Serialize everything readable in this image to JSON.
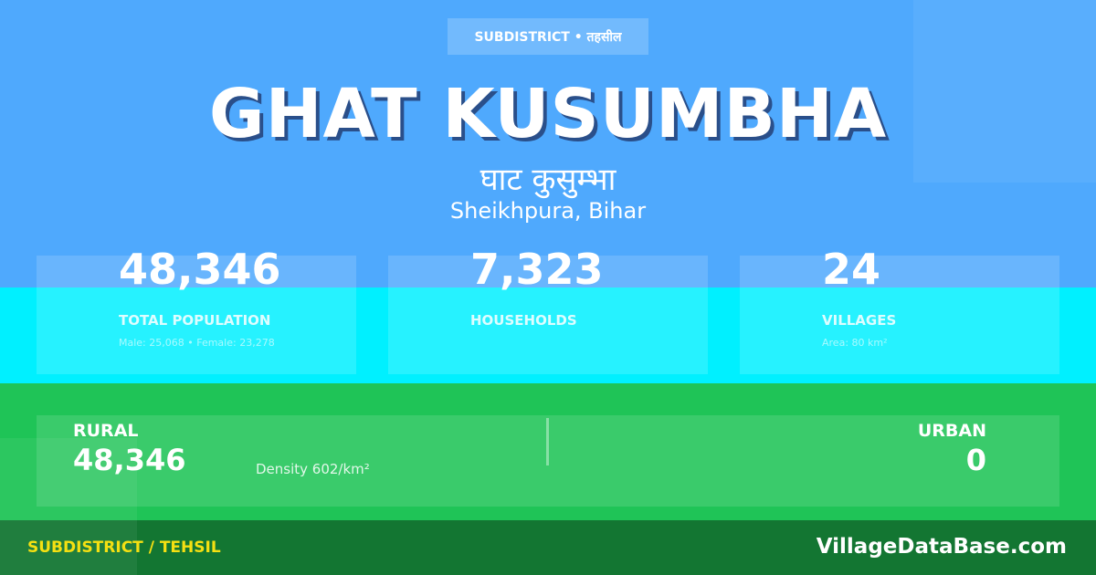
{
  "colors": {
    "header_bg": "#4fa9fd",
    "stats_bg": "#00f0ff",
    "split_bg": "#1fc457",
    "footer_bg": "#137632",
    "footer_label": "#f5e012"
  },
  "badge": "SUBDISTRICT • तहसील",
  "title": "GHAT KUSUMBHA",
  "title_hindi": "घाट कुसुम्भा",
  "location": "Sheikhpura, Bihar",
  "stats": [
    {
      "value": "48,346",
      "label": "TOTAL POPULATION",
      "sub": "Male: 25,068 • Female: 23,278"
    },
    {
      "value": "7,323",
      "label": "HOUSEHOLDS",
      "sub": ""
    },
    {
      "value": "24",
      "label": "VILLAGES",
      "sub": "Area: 80 km²"
    }
  ],
  "rural": {
    "label": "RURAL",
    "value": "48,346"
  },
  "density": "Density 602/km²",
  "urban": {
    "label": "URBAN",
    "value": "0"
  },
  "footer": {
    "type": "SUBDISTRICT / TEHSIL",
    "site": "VillageDataBase.com"
  }
}
